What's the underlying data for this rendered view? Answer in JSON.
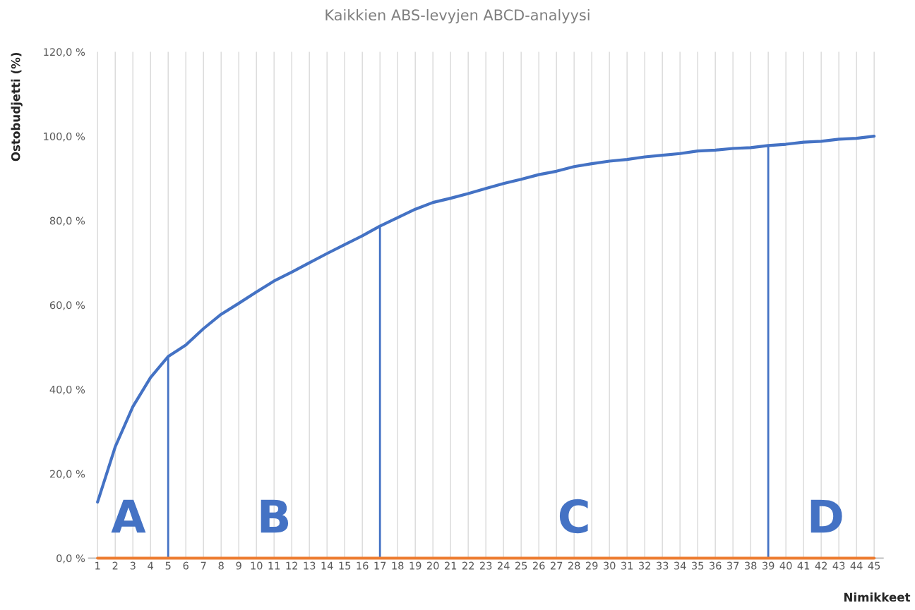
{
  "chart_data": {
    "type": "line",
    "title": "Kaikkien ABS-levyjen ABCD-analyysi",
    "xlabel": "Nimikkeet",
    "ylabel": "Ostobudjetti (%)",
    "x": [
      1,
      2,
      3,
      4,
      5,
      6,
      7,
      8,
      9,
      10,
      11,
      12,
      13,
      14,
      15,
      16,
      17,
      18,
      19,
      20,
      21,
      22,
      23,
      24,
      25,
      26,
      27,
      28,
      29,
      30,
      31,
      32,
      33,
      34,
      35,
      36,
      37,
      38,
      39,
      40,
      41,
      42,
      43,
      44,
      45
    ],
    "series": [
      {
        "color": "#4472c4",
        "values": [
          13.3,
          26.4,
          35.9,
          42.8,
          47.8,
          50.5,
          54.4,
          57.8,
          60.4,
          63.1,
          65.7,
          67.8,
          70.0,
          72.2,
          74.3,
          76.4,
          78.7,
          80.7,
          82.7,
          84.3,
          85.3,
          86.4,
          87.6,
          88.8,
          89.8,
          90.9,
          91.7,
          92.8,
          93.5,
          94.1,
          94.5,
          95.1,
          95.5,
          95.9,
          96.5,
          96.7,
          97.1,
          97.3,
          97.8,
          98.1,
          98.6,
          98.8,
          99.3,
          99.5,
          100
        ]
      },
      {
        "color": "#ed7d31",
        "values": [
          0,
          0,
          0,
          0,
          0,
          0,
          0,
          0,
          0,
          0,
          0,
          0,
          0,
          0,
          0,
          0,
          0,
          0,
          0,
          0,
          0,
          0,
          0,
          0,
          0,
          0,
          0,
          0,
          0,
          0,
          0,
          0,
          0,
          0,
          0,
          0,
          0,
          0,
          0,
          0,
          0,
          0,
          0,
          0,
          0
        ]
      }
    ],
    "xlim": [
      0.5,
      45.5
    ],
    "xticks": [
      1,
      2,
      3,
      4,
      5,
      6,
      7,
      8,
      9,
      10,
      11,
      12,
      13,
      14,
      15,
      16,
      17,
      18,
      19,
      20,
      21,
      22,
      23,
      24,
      25,
      26,
      27,
      28,
      29,
      30,
      31,
      32,
      33,
      34,
      35,
      36,
      37,
      38,
      39,
      40,
      41,
      42,
      43,
      44,
      45
    ],
    "ylim": [
      0,
      120
    ],
    "yticks": [
      {
        "value": 0,
        "label": "0,0 %"
      },
      {
        "value": 20,
        "label": "20,0 %"
      },
      {
        "value": 40,
        "label": "40,0 %"
      },
      {
        "value": 60,
        "label": "60,0 %"
      },
      {
        "value": 80,
        "label": "80,0 %"
      },
      {
        "value": 100,
        "label": "100,0 %"
      },
      {
        "value": 120,
        "label": "120,0 %"
      }
    ],
    "grid": "x",
    "legend": false,
    "marker": "none",
    "line_style": "solid",
    "ref_lines": [
      {
        "axis": "x",
        "value": 5,
        "color": "#4472c4"
      },
      {
        "axis": "x",
        "value": 17,
        "color": "#4472c4"
      },
      {
        "axis": "x",
        "value": 39,
        "color": "#4472c4"
      }
    ],
    "annotations": [
      "A",
      "B",
      "C",
      "D"
    ]
  }
}
